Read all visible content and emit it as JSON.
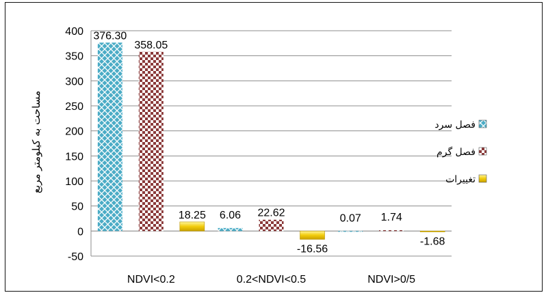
{
  "chart_data": {
    "type": "bar",
    "categories": [
      "NDVI<0.2",
      "0.2<NDVI<0.5",
      "NDVI>0/5"
    ],
    "series": [
      {
        "name": "فصل سرد",
        "values": [
          376.3,
          6.06,
          0.07
        ],
        "labels": [
          "376.30",
          "6.06",
          "0.07"
        ],
        "color": "#4bacc6"
      },
      {
        "name": "فصل گرم",
        "values": [
          358.05,
          22.62,
          1.74
        ],
        "labels": [
          "358.05",
          "22.62",
          "1.74"
        ],
        "color": "#8b3a3a"
      },
      {
        "name": "تغییرات",
        "values": [
          18.25,
          -16.56,
          -1.68
        ],
        "labels": [
          "18.25",
          "-16.56",
          "-1.68"
        ],
        "color": "#f2cc0c"
      }
    ],
    "yticks": [
      "400",
      "350",
      "300",
      "250",
      "200",
      "150",
      "100",
      "50",
      "0",
      "-50"
    ],
    "ylabel": "مساحت به کیلومتر مربع",
    "ylim": [
      -50,
      400
    ],
    "grid": true,
    "legend_position": "right"
  }
}
